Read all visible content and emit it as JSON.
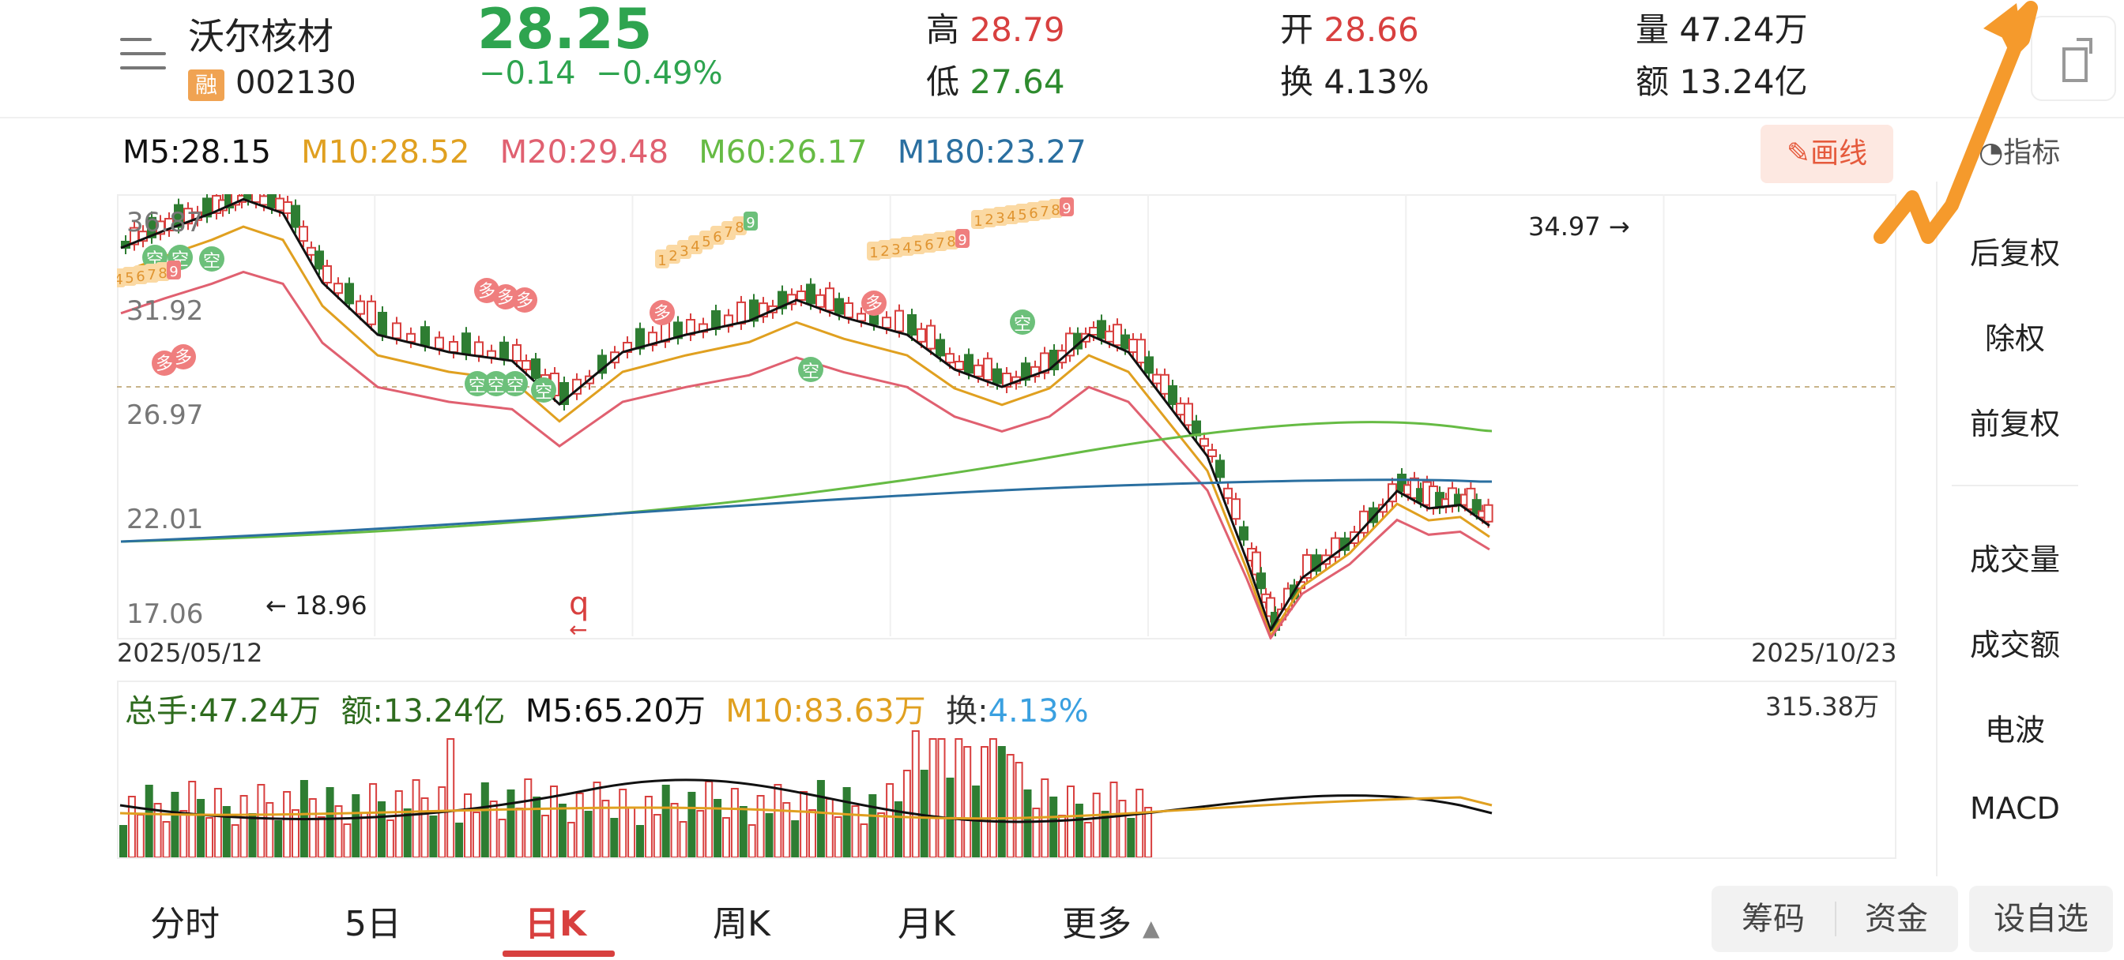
{
  "header": {
    "stock_name": "沃尔核材",
    "rong_badge": "融",
    "code": "002130",
    "price": "28.25",
    "change": "−0.14",
    "change_pct": "−0.49%",
    "high_label": "高",
    "high": "28.79",
    "low_label": "低",
    "low": "27.64",
    "open_label": "开",
    "open": "28.66",
    "turnover_label": "换",
    "turnover": "4.13%",
    "volume_label": "量",
    "volume": "47.24万",
    "amount_label": "额",
    "amount": "13.24亿"
  },
  "ma": {
    "m5": "M5:28.15",
    "m10": "M10:28.52",
    "m20": "M20:29.48",
    "m60": "M60:26.17",
    "m180": "M180:23.27"
  },
  "toolbar": {
    "draw_label": "画线",
    "indicator_label": "指标"
  },
  "kchart": {
    "y_ticks": [
      "36.87",
      "31.92",
      "26.97",
      "22.01",
      "17.06"
    ],
    "date_start": "2025/05/12",
    "date_end": "2025/10/23",
    "high_marker": "34.97",
    "low_marker": "18.96",
    "q_marker": "q",
    "signal_kong": "空",
    "signal_duo": "多",
    "seq_labels": [
      "1",
      "2",
      "3",
      "4",
      "5",
      "6",
      "7",
      "8",
      "9"
    ]
  },
  "volume_panel": {
    "total": "总手:47.24万",
    "amount": "额:13.24亿",
    "m5": "M5:65.20万",
    "m10": "M10:83.63万",
    "turnover_label": "换:",
    "turnover": "4.13%",
    "max": "315.38万"
  },
  "right_menu": {
    "items": [
      "后复权",
      "除权",
      "前复权",
      "成交量",
      "成交额",
      "电波",
      "MACD"
    ]
  },
  "bottom_tabs": {
    "items": [
      "分时",
      "5日",
      "日K",
      "周K",
      "月K",
      "更多"
    ],
    "active": "日K"
  },
  "bottom_buttons": {
    "chips": "筹码",
    "funds": "资金",
    "watchlist": "设自选"
  },
  "colors": {
    "up": "#d8403f",
    "down": "#2e7d32",
    "m5": "#111111",
    "m10": "#e0a020",
    "m20": "#e06070",
    "m60": "#66bb44",
    "m180": "#2a6fa0",
    "annotation_arrow": "#f59a2c"
  }
}
